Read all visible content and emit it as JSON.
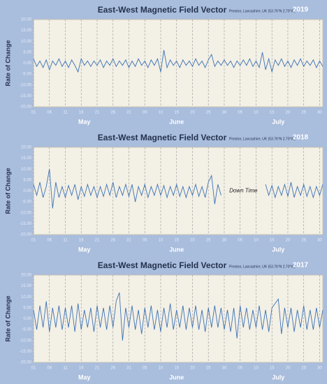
{
  "chart_data": [
    {
      "type": "line",
      "title": "East-West Magnetic Field Vector",
      "subtitle": "Preston, Lancashire, UK (53.76°N 2.70°W)",
      "year": "2019",
      "ylabel": "Rate of Change",
      "months": [
        "May",
        "June",
        "July"
      ],
      "color": "#3d72b4",
      "grid": true,
      "xlim": [
        0,
        91
      ],
      "ylim": [
        -20,
        20
      ],
      "xticks": [
        {
          "value": 0,
          "label": "01"
        },
        {
          "value": 5,
          "label": "06"
        },
        {
          "value": 10,
          "label": "11"
        },
        {
          "value": 15,
          "label": "16"
        },
        {
          "value": 20,
          "label": "21"
        },
        {
          "value": 25,
          "label": "26"
        },
        {
          "value": 30,
          "label": "31"
        },
        {
          "value": 35,
          "label": "05"
        },
        {
          "value": 40,
          "label": "10"
        },
        {
          "value": 45,
          "label": "15"
        },
        {
          "value": 50,
          "label": "20"
        },
        {
          "value": 55,
          "label": "25"
        },
        {
          "value": 60,
          "label": "30"
        },
        {
          "value": 65,
          "label": "05"
        },
        {
          "value": 70,
          "label": "10"
        },
        {
          "value": 75,
          "label": "15"
        },
        {
          "value": 80,
          "label": "20"
        },
        {
          "value": 85,
          "label": "25"
        },
        {
          "value": 90,
          "label": "30"
        }
      ],
      "yticks": [
        {
          "value": 20,
          "label": "20.00"
        },
        {
          "value": 15,
          "label": "15.00"
        },
        {
          "value": 10,
          "label": "10.00"
        },
        {
          "value": 5,
          "label": "5.00"
        },
        {
          "value": 0,
          "label": "0.00"
        },
        {
          "value": -5,
          "label": "-5.00"
        },
        {
          "value": -10,
          "label": "-10.00"
        },
        {
          "value": -15,
          "label": "-15.00"
        },
        {
          "value": -20,
          "label": "-20.00"
        }
      ],
      "x": [
        0,
        1,
        2,
        3,
        4,
        5,
        6,
        7,
        8,
        9,
        10,
        11,
        12,
        13,
        14,
        15,
        16,
        17,
        18,
        19,
        20,
        21,
        22,
        23,
        24,
        25,
        26,
        27,
        28,
        29,
        30,
        31,
        32,
        33,
        34,
        35,
        36,
        37,
        38,
        39,
        40,
        41,
        42,
        43,
        44,
        45,
        46,
        47,
        48,
        49,
        50,
        51,
        52,
        53,
        54,
        55,
        56,
        57,
        58,
        59,
        60,
        61,
        62,
        63,
        64,
        65,
        66,
        67,
        68,
        69,
        70,
        71,
        72,
        73,
        74,
        75,
        76,
        77,
        78,
        79,
        80,
        81,
        82,
        83,
        84,
        85,
        86,
        87,
        88,
        89,
        90,
        91
      ],
      "values": [
        2,
        -1.5,
        1,
        -2,
        1.5,
        -3,
        1,
        -1,
        2,
        -1.5,
        1,
        -2,
        1.5,
        -1,
        -4,
        2,
        -1,
        1,
        -1.5,
        1,
        -1,
        1.5,
        -2,
        1,
        -1,
        2,
        -1.5,
        1,
        -1,
        1.5,
        -2,
        1,
        -1.5,
        2,
        -1,
        1,
        -2,
        1.5,
        -1,
        2,
        -4,
        6,
        -2,
        1.5,
        -1,
        1,
        -2,
        1.5,
        -1,
        1,
        -1.5,
        2,
        -1,
        1,
        -2,
        1.5,
        4,
        -1.5,
        1,
        -1,
        1.5,
        -1,
        1,
        -2,
        1,
        -1,
        1.5,
        -1,
        2,
        -1.5,
        1,
        -2,
        5,
        -3,
        2,
        -4,
        1.5,
        -1,
        2,
        -1.5,
        1,
        -2,
        1.5,
        -1,
        2,
        -1.5,
        1,
        -1,
        1.5,
        -2,
        1,
        -1.5
      ]
    },
    {
      "type": "line",
      "title": "East-West Magnetic Field Vector",
      "subtitle": "Preston, Lancashire, UK (53.76°N 2.70°W)",
      "year": "2018",
      "ylabel": "Rate of Change",
      "months": [
        "May",
        "June",
        "July"
      ],
      "annotation": "Down Time",
      "color": "#3d72b4",
      "grid": true,
      "xlim": [
        0,
        91
      ],
      "ylim": [
        -20,
        20
      ],
      "xticks": [
        {
          "value": 0,
          "label": "01"
        },
        {
          "value": 5,
          "label": "06"
        },
        {
          "value": 10,
          "label": "11"
        },
        {
          "value": 15,
          "label": "16"
        },
        {
          "value": 20,
          "label": "21"
        },
        {
          "value": 25,
          "label": "26"
        },
        {
          "value": 30,
          "label": "31"
        },
        {
          "value": 35,
          "label": "05"
        },
        {
          "value": 40,
          "label": "10"
        },
        {
          "value": 45,
          "label": "15"
        },
        {
          "value": 50,
          "label": "20"
        },
        {
          "value": 55,
          "label": "25"
        },
        {
          "value": 60,
          "label": "30"
        },
        {
          "value": 65,
          "label": "05"
        },
        {
          "value": 70,
          "label": "10"
        },
        {
          "value": 75,
          "label": "15"
        },
        {
          "value": 80,
          "label": "20"
        },
        {
          "value": 85,
          "label": "25"
        },
        {
          "value": 90,
          "label": "30"
        }
      ],
      "yticks": [
        {
          "value": 20,
          "label": "20.00"
        },
        {
          "value": 15,
          "label": "15.00"
        },
        {
          "value": 10,
          "label": "10.00"
        },
        {
          "value": 5,
          "label": "5.00"
        },
        {
          "value": 0,
          "label": "0.00"
        },
        {
          "value": -5,
          "label": "-5.00"
        },
        {
          "value": -10,
          "label": "-10.00"
        },
        {
          "value": -15,
          "label": "-15.00"
        },
        {
          "value": -20,
          "label": "-20.00"
        }
      ],
      "x": [
        0,
        1,
        2,
        3,
        4,
        5,
        6,
        7,
        8,
        9,
        10,
        11,
        12,
        13,
        14,
        15,
        16,
        17,
        18,
        19,
        20,
        21,
        22,
        23,
        24,
        25,
        26,
        27,
        28,
        29,
        30,
        31,
        32,
        33,
        34,
        35,
        36,
        37,
        38,
        39,
        40,
        41,
        42,
        43,
        44,
        45,
        46,
        47,
        48,
        49,
        50,
        51,
        52,
        53,
        54,
        55,
        56,
        57,
        58,
        59,
        60,
        61,
        62,
        63,
        64,
        65,
        66,
        67,
        68,
        69,
        70,
        71,
        72,
        73,
        74,
        75,
        76,
        77,
        78,
        79,
        80,
        81,
        82,
        83,
        84,
        85,
        86,
        87,
        88,
        89,
        90,
        91
      ],
      "values": [
        3,
        -2,
        4,
        -3,
        2,
        10,
        -8,
        4,
        -3,
        2,
        -3,
        2.5,
        -2,
        3,
        -4,
        2,
        -2.5,
        3,
        -2,
        2,
        -3,
        2,
        -2.5,
        3,
        -2,
        4,
        -3,
        2,
        -2,
        3,
        -2.5,
        3,
        -5,
        2,
        -2,
        3,
        -3,
        2,
        -2,
        3,
        -2,
        2.5,
        -3,
        2,
        -2,
        3,
        -2.5,
        2,
        -3,
        2,
        -2,
        3,
        -2.5,
        2,
        -3,
        4,
        7,
        -6,
        3,
        -2,
        null,
        null,
        null,
        null,
        null,
        null,
        null,
        null,
        null,
        null,
        null,
        null,
        null,
        3,
        -2,
        2.5,
        -3,
        2,
        -2,
        3,
        -2.5,
        4,
        -3,
        2,
        -2,
        3,
        -2.5,
        2,
        -3,
        2,
        -2,
        3
      ]
    },
    {
      "type": "line",
      "title": "East-West Magnetic Field Vector",
      "subtitle": "Preston, Lancashire, UK (53.76°N 2.70°W)",
      "year": "2017",
      "ylabel": "Rate of Change",
      "months": [
        "May",
        "June",
        "July"
      ],
      "color": "#3d72b4",
      "grid": true,
      "xlim": [
        0,
        91
      ],
      "ylim": [
        -20,
        20
      ],
      "xticks": [
        {
          "value": 0,
          "label": "01"
        },
        {
          "value": 5,
          "label": "06"
        },
        {
          "value": 10,
          "label": "11"
        },
        {
          "value": 15,
          "label": "16"
        },
        {
          "value": 20,
          "label": "21"
        },
        {
          "value": 25,
          "label": "26"
        },
        {
          "value": 30,
          "label": "31"
        },
        {
          "value": 35,
          "label": "05"
        },
        {
          "value": 40,
          "label": "10"
        },
        {
          "value": 45,
          "label": "15"
        },
        {
          "value": 50,
          "label": "20"
        },
        {
          "value": 55,
          "label": "25"
        },
        {
          "value": 60,
          "label": "30"
        },
        {
          "value": 65,
          "label": "05"
        },
        {
          "value": 70,
          "label": "10"
        },
        {
          "value": 75,
          "label": "15"
        },
        {
          "value": 80,
          "label": "20"
        },
        {
          "value": 85,
          "label": "25"
        },
        {
          "value": 90,
          "label": "30"
        }
      ],
      "yticks": [
        {
          "value": 20,
          "label": "20.00"
        },
        {
          "value": 15,
          "label": "15.00"
        },
        {
          "value": 10,
          "label": "10.00"
        },
        {
          "value": 5,
          "label": "5.00"
        },
        {
          "value": 0,
          "label": "0.00"
        },
        {
          "value": -5,
          "label": "-5.00"
        },
        {
          "value": -10,
          "label": "-10.00"
        },
        {
          "value": -15,
          "label": "-15.00"
        },
        {
          "value": -20,
          "label": "-20.00"
        }
      ],
      "x": [
        0,
        1,
        2,
        3,
        4,
        5,
        6,
        7,
        8,
        9,
        10,
        11,
        12,
        13,
        14,
        15,
        16,
        17,
        18,
        19,
        20,
        21,
        22,
        23,
        24,
        25,
        26,
        27,
        28,
        29,
        30,
        31,
        32,
        33,
        34,
        35,
        36,
        37,
        38,
        39,
        40,
        41,
        42,
        43,
        44,
        45,
        46,
        47,
        48,
        49,
        50,
        51,
        52,
        53,
        54,
        55,
        56,
        57,
        58,
        59,
        60,
        61,
        62,
        63,
        64,
        65,
        66,
        67,
        68,
        69,
        70,
        71,
        72,
        73,
        74,
        75,
        76,
        77,
        78,
        79,
        80,
        81,
        82,
        83,
        84,
        85,
        86,
        87,
        88,
        89,
        90,
        91
      ],
      "values": [
        4,
        -5,
        6,
        -4,
        8,
        -6,
        5,
        -4,
        6,
        -5,
        5,
        -4,
        6,
        -6,
        7,
        -5,
        4,
        -4,
        5,
        -6,
        6,
        -4,
        5,
        -5,
        6,
        -4,
        8,
        12,
        -10,
        5,
        -4,
        6,
        -5,
        4,
        -7,
        5,
        -4,
        6,
        -5,
        4,
        -6,
        5,
        -4,
        7,
        -5,
        4,
        -4,
        6,
        -5,
        5,
        -4,
        6,
        -5,
        4,
        -6,
        5,
        -4,
        6,
        -4,
        5,
        -5,
        4,
        -6,
        5,
        -9,
        6,
        -4,
        5,
        -5,
        4,
        -4,
        6,
        -5,
        4,
        -6,
        5,
        7,
        9,
        -7,
        5,
        -4,
        5,
        -6,
        4,
        -4,
        6,
        -5,
        4,
        -5,
        5,
        -4,
        4
      ]
    }
  ]
}
